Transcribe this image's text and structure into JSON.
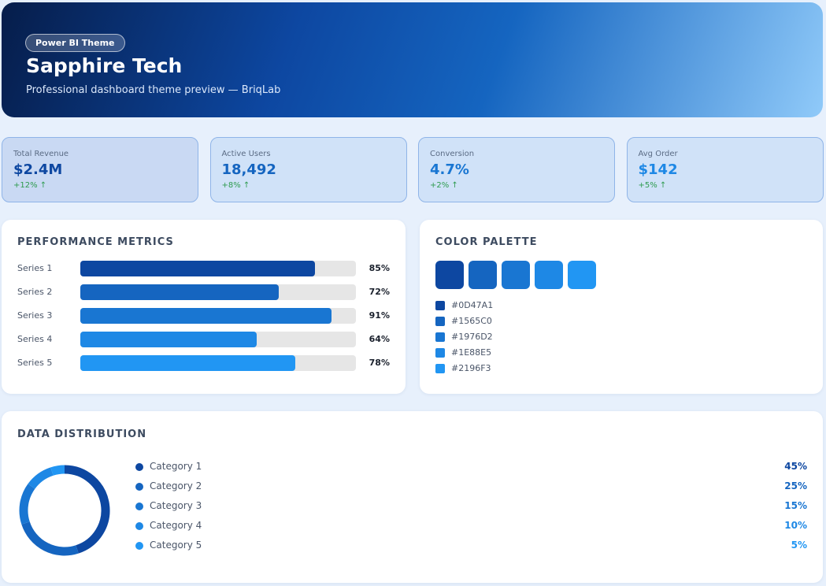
{
  "header": {
    "badge": "Power BI Theme",
    "title": "Sapphire Tech",
    "subtitle": "Professional dashboard theme preview — BriqLab"
  },
  "kpis": [
    {
      "label": "Total Revenue",
      "value": "$2.4M",
      "change": "+12% ↑"
    },
    {
      "label": "Active Users",
      "value": "18,492",
      "change": "+8% ↑"
    },
    {
      "label": "Conversion",
      "value": "4.7%",
      "change": "+2% ↑"
    },
    {
      "label": "Avg Order",
      "value": "$142",
      "change": "+5% ↑"
    }
  ],
  "performance": {
    "type": "bar",
    "title": "PERFORMANCE METRICS",
    "categories": [
      "Series 1",
      "Series 2",
      "Series 3",
      "Series 4",
      "Series 5"
    ],
    "values": [
      85,
      72,
      91,
      64,
      78
    ],
    "value_labels": [
      "85%",
      "72%",
      "91%",
      "64%",
      "78%"
    ],
    "xlim": [
      0,
      100
    ]
  },
  "palette": {
    "title": "COLOR PALETTE",
    "colors": [
      "#0D47A1",
      "#1565C0",
      "#1976D2",
      "#1E88E5",
      "#2196F3"
    ]
  },
  "distribution": {
    "type": "donut",
    "title": "DATA DISTRIBUTION",
    "categories": [
      "Category 1",
      "Category 2",
      "Category 3",
      "Category 4",
      "Category 5"
    ],
    "values": [
      45,
      25,
      15,
      10,
      5
    ],
    "value_labels": [
      "45%",
      "25%",
      "15%",
      "10%",
      "5%"
    ]
  }
}
